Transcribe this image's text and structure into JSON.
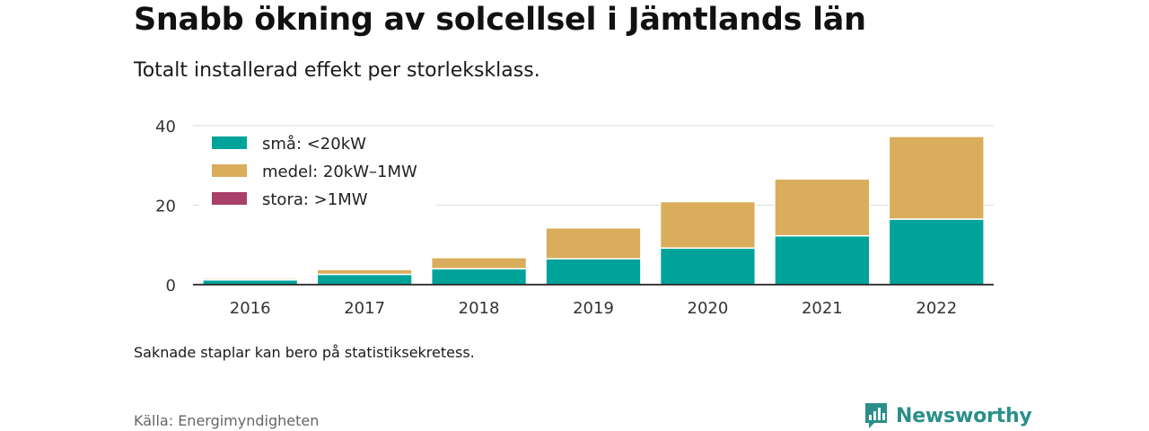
{
  "header": {
    "title": "Snabb ökning av solcellsel i Jämtlands län",
    "subtitle": "Totalt installerad effekt per storleksklass."
  },
  "chart_data": {
    "type": "bar",
    "stacked": true,
    "categories": [
      "2016",
      "2017",
      "2018",
      "2019",
      "2020",
      "2021",
      "2022"
    ],
    "series": [
      {
        "name": "små: <20kW",
        "color": "#00a39a",
        "values": [
          1.2,
          2.6,
          4.0,
          6.5,
          9.2,
          12.3,
          16.5
        ]
      },
      {
        "name": "medel: 20kW–1MW",
        "color": "#d9ad5b",
        "values": [
          0.4,
          1.2,
          2.8,
          7.8,
          11.7,
          14.3,
          20.8
        ]
      },
      {
        "name": "stora: >1MW",
        "color": "#a8406a",
        "values": [
          0,
          0,
          0,
          0,
          0,
          0,
          0
        ]
      }
    ],
    "ylim": [
      0,
      40
    ],
    "yticks": [
      "0",
      "20",
      "40"
    ],
    "grid": true,
    "legend_position": "top-left"
  },
  "footer": {
    "note": "Saknade staplar kan bero på statistiksekretess.",
    "source": "Källa: Energimyndigheten",
    "brand": "Newsworthy",
    "brand_color": "#2a8f8a"
  }
}
